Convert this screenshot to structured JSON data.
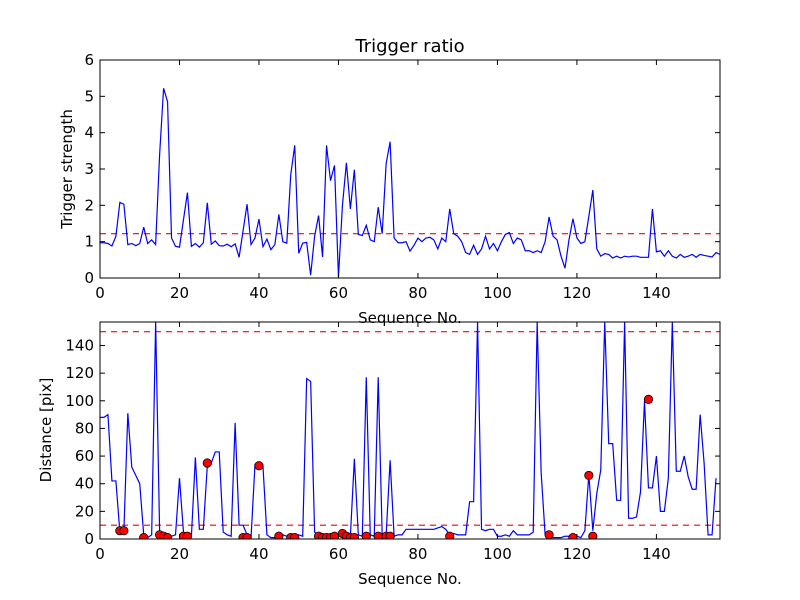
{
  "chart_data": [
    {
      "type": "line",
      "title": "Trigger ratio",
      "xlabel": "Sequence No.",
      "ylabel": "Trigger strength",
      "xlim": [
        0,
        156
      ],
      "ylim": [
        0,
        6
      ],
      "xticks": [
        "0",
        "20",
        "40",
        "60",
        "80",
        "100",
        "120",
        "140"
      ],
      "yticks": [
        "0",
        "1",
        "2",
        "3",
        "4",
        "5",
        "6"
      ],
      "grid": false,
      "hline": 1.22,
      "colors": {
        "line": "#0000ff",
        "hline": "#ff0000"
      },
      "series": [
        {
          "values": [
            0.97,
            0.97,
            0.95,
            0.88,
            1.15,
            2.08,
            2.03,
            0.92,
            0.95,
            0.89,
            0.95,
            1.4,
            0.95,
            1.05,
            0.92,
            3.4,
            5.22,
            4.85,
            1.1,
            0.87,
            0.85,
            1.6,
            2.35,
            0.87,
            0.95,
            0.85,
            0.97,
            2.07,
            0.93,
            1.02,
            0.89,
            0.88,
            0.93,
            0.86,
            0.94,
            0.57,
            1.3,
            2.03,
            0.92,
            1.1,
            1.62,
            0.86,
            1.07,
            0.78,
            0.92,
            1.75,
            1.0,
            0.96,
            2.85,
            3.65,
            0.68,
            0.96,
            0.98,
            0.08,
            1.15,
            1.72,
            0.58,
            3.65,
            2.68,
            3.1,
            0.03,
            2.0,
            3.17,
            1.9,
            2.98,
            1.2,
            1.17,
            1.45,
            1.05,
            1.0,
            1.95,
            1.22,
            3.15,
            3.75,
            1.1,
            0.97,
            0.97,
            1.0,
            0.74,
            0.9,
            1.1,
            1.0,
            1.1,
            1.12,
            1.05,
            0.8,
            1.1,
            1.0,
            1.9,
            1.22,
            1.15,
            1.0,
            0.7,
            0.65,
            0.9,
            0.65,
            0.8,
            1.15,
            0.8,
            0.95,
            0.75,
            1.0,
            1.2,
            1.25,
            0.95,
            1.1,
            1.05,
            0.75,
            0.75,
            0.7,
            0.75,
            0.7,
            1.0,
            1.68,
            1.15,
            1.05,
            0.6,
            0.27,
            1.05,
            1.63,
            1.1,
            0.95,
            1.0,
            1.7,
            2.42,
            0.8,
            0.6,
            0.67,
            0.65,
            0.55,
            0.6,
            0.55,
            0.6,
            0.58,
            0.6,
            0.6,
            0.57,
            0.57,
            0.57,
            1.9,
            0.72,
            0.75,
            0.6,
            0.75,
            0.6,
            0.55,
            0.65,
            0.57,
            0.6,
            0.65,
            0.57,
            0.65,
            0.62,
            0.6,
            0.58,
            0.7,
            0.65,
            0.7
          ]
        }
      ]
    },
    {
      "type": "line",
      "title": "",
      "xlabel": "Sequence No.",
      "ylabel": "Distance [pix]",
      "xlim": [
        0,
        156
      ],
      "ylim": [
        0,
        157
      ],
      "xticks": [
        "0",
        "20",
        "40",
        "60",
        "80",
        "100",
        "120",
        "140"
      ],
      "yticks": [
        "0",
        "20",
        "40",
        "60",
        "80",
        "100",
        "120",
        "140"
      ],
      "grid": false,
      "hlines": [
        10,
        150
      ],
      "colors": {
        "line": "#0000ff",
        "hline": "#ff0000",
        "marker": "#ff0000"
      },
      "series": [
        {
          "values": [
            88,
            88,
            90,
            42,
            42,
            5,
            5,
            91,
            52,
            46,
            40,
            3,
            1,
            3,
            157,
            5,
            2,
            1,
            2,
            3,
            44,
            5,
            3,
            2,
            59,
            7,
            7,
            53,
            55,
            63,
            63,
            5,
            3,
            2,
            84,
            10,
            10,
            3,
            1,
            54,
            54,
            53,
            3,
            1,
            1,
            3,
            3,
            2,
            3,
            3,
            3,
            2,
            116,
            114,
            5,
            2,
            3,
            3,
            3,
            2,
            3,
            3,
            3,
            2,
            58,
            3,
            2,
            117,
            3,
            2,
            117,
            3,
            3,
            57,
            2,
            3,
            3,
            7,
            7,
            7,
            7,
            7,
            7,
            7,
            7,
            8,
            9,
            7,
            3,
            4,
            3,
            3,
            3,
            27,
            27,
            157,
            7,
            6,
            7,
            7,
            2,
            2,
            3,
            2,
            6,
            3,
            3,
            3,
            3,
            5,
            157,
            48,
            3,
            1,
            1,
            1,
            1,
            2,
            2,
            2,
            2,
            1,
            6,
            47,
            6,
            33,
            50,
            157,
            69,
            69,
            28,
            28,
            157,
            15,
            15,
            16,
            34,
            100,
            37,
            37,
            60,
            20,
            20,
            44,
            157,
            49,
            49,
            60,
            45,
            36,
            36,
            90,
            55,
            3,
            3,
            44
          ]
        }
      ],
      "markers": [
        {
          "x": 5,
          "y": 6
        },
        {
          "x": 6,
          "y": 6
        },
        {
          "x": 11,
          "y": 1
        },
        {
          "x": 15,
          "y": 3
        },
        {
          "x": 16,
          "y": 2
        },
        {
          "x": 17,
          "y": 1
        },
        {
          "x": 21,
          "y": 2
        },
        {
          "x": 22,
          "y": 2
        },
        {
          "x": 27,
          "y": 55
        },
        {
          "x": 36,
          "y": 1
        },
        {
          "x": 37,
          "y": 1
        },
        {
          "x": 40,
          "y": 53
        },
        {
          "x": 45,
          "y": 2
        },
        {
          "x": 48,
          "y": 1
        },
        {
          "x": 49,
          "y": 1
        },
        {
          "x": 55,
          "y": 2
        },
        {
          "x": 56,
          "y": 1
        },
        {
          "x": 57,
          "y": 1
        },
        {
          "x": 58,
          "y": 1
        },
        {
          "x": 59,
          "y": 2
        },
        {
          "x": 61,
          "y": 4
        },
        {
          "x": 62,
          "y": 2
        },
        {
          "x": 63,
          "y": 1
        },
        {
          "x": 64,
          "y": 1
        },
        {
          "x": 67,
          "y": 2
        },
        {
          "x": 70,
          "y": 2
        },
        {
          "x": 72,
          "y": 2
        },
        {
          "x": 73,
          "y": 2
        },
        {
          "x": 88,
          "y": 2
        },
        {
          "x": 113,
          "y": 3
        },
        {
          "x": 119,
          "y": 1
        },
        {
          "x": 123,
          "y": 46
        },
        {
          "x": 124,
          "y": 2
        },
        {
          "x": 138,
          "y": 101
        }
      ]
    }
  ]
}
